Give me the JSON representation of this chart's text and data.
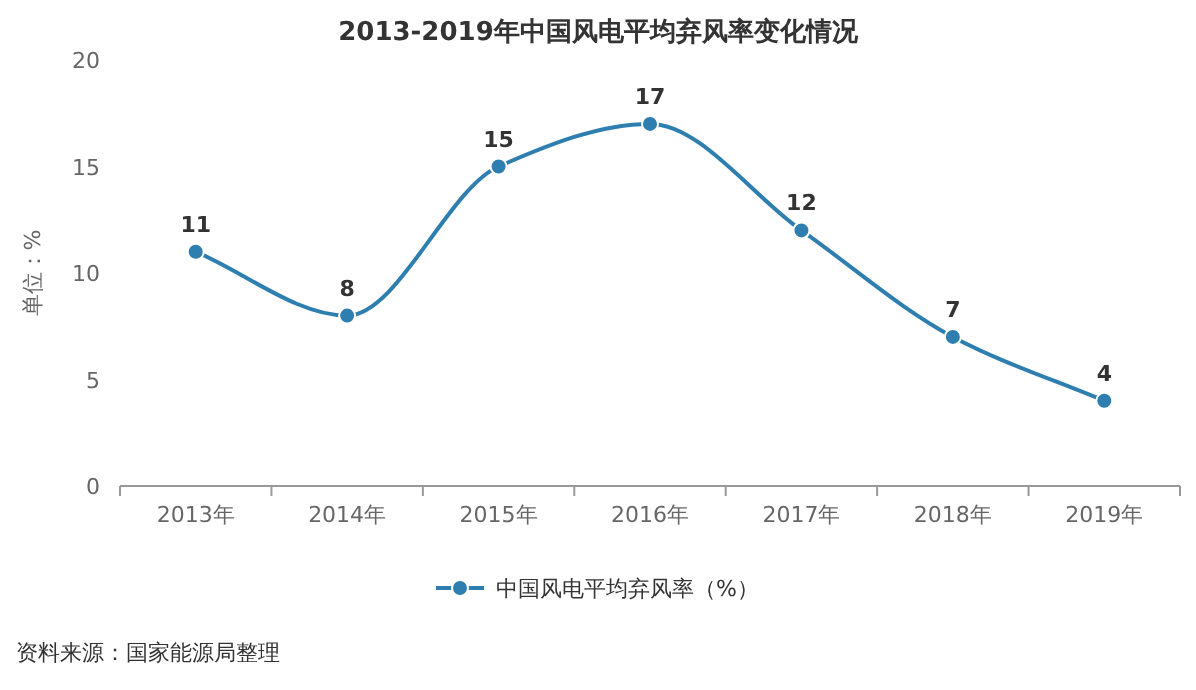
{
  "chart_data": {
    "type": "line",
    "title": "2013-2019年中国风电平均弃风率变化情况",
    "ylabel": "单位：%",
    "categories": [
      "2013年",
      "2014年",
      "2015年",
      "2016年",
      "2017年",
      "2018年",
      "2019年"
    ],
    "series": [
      {
        "name": "中国风电平均弃风率（%）",
        "color": "#2e7fb0",
        "values": [
          11,
          8,
          15,
          17,
          12,
          7,
          4
        ]
      }
    ],
    "ylim": [
      0,
      20
    ],
    "yticks": [
      0,
      5,
      10,
      15,
      20
    ],
    "grid": false,
    "legend": "bottom",
    "marker": "circle",
    "data_labels": true,
    "annotations": [
      "资料来源：国家能源局整理"
    ]
  }
}
